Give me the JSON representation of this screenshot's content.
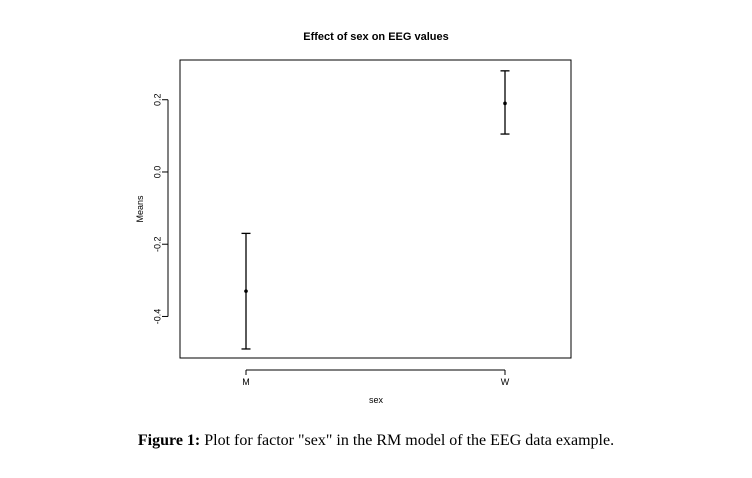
{
  "chart_data": {
    "type": "scatter",
    "title": "Effect of sex on EEG values",
    "xlabel": "sex",
    "ylabel": "Means",
    "categories": [
      "M",
      "W"
    ],
    "means": [
      -0.33,
      0.19
    ],
    "lower": [
      -0.49,
      0.105
    ],
    "upper": [
      -0.17,
      0.28
    ],
    "ylim": [
      -0.515,
      0.31
    ],
    "yticks": [
      -0.4,
      -0.2,
      0.0,
      0.2
    ],
    "ytick_labels": [
      "-0.4",
      "-0.2",
      "0.0",
      "0.2"
    ],
    "grid": false,
    "legend": "none",
    "color": "#000000"
  },
  "caption": {
    "label": "Figure 1:",
    "text": " Plot for factor \"sex\" in the RM model of the EEG data example."
  }
}
